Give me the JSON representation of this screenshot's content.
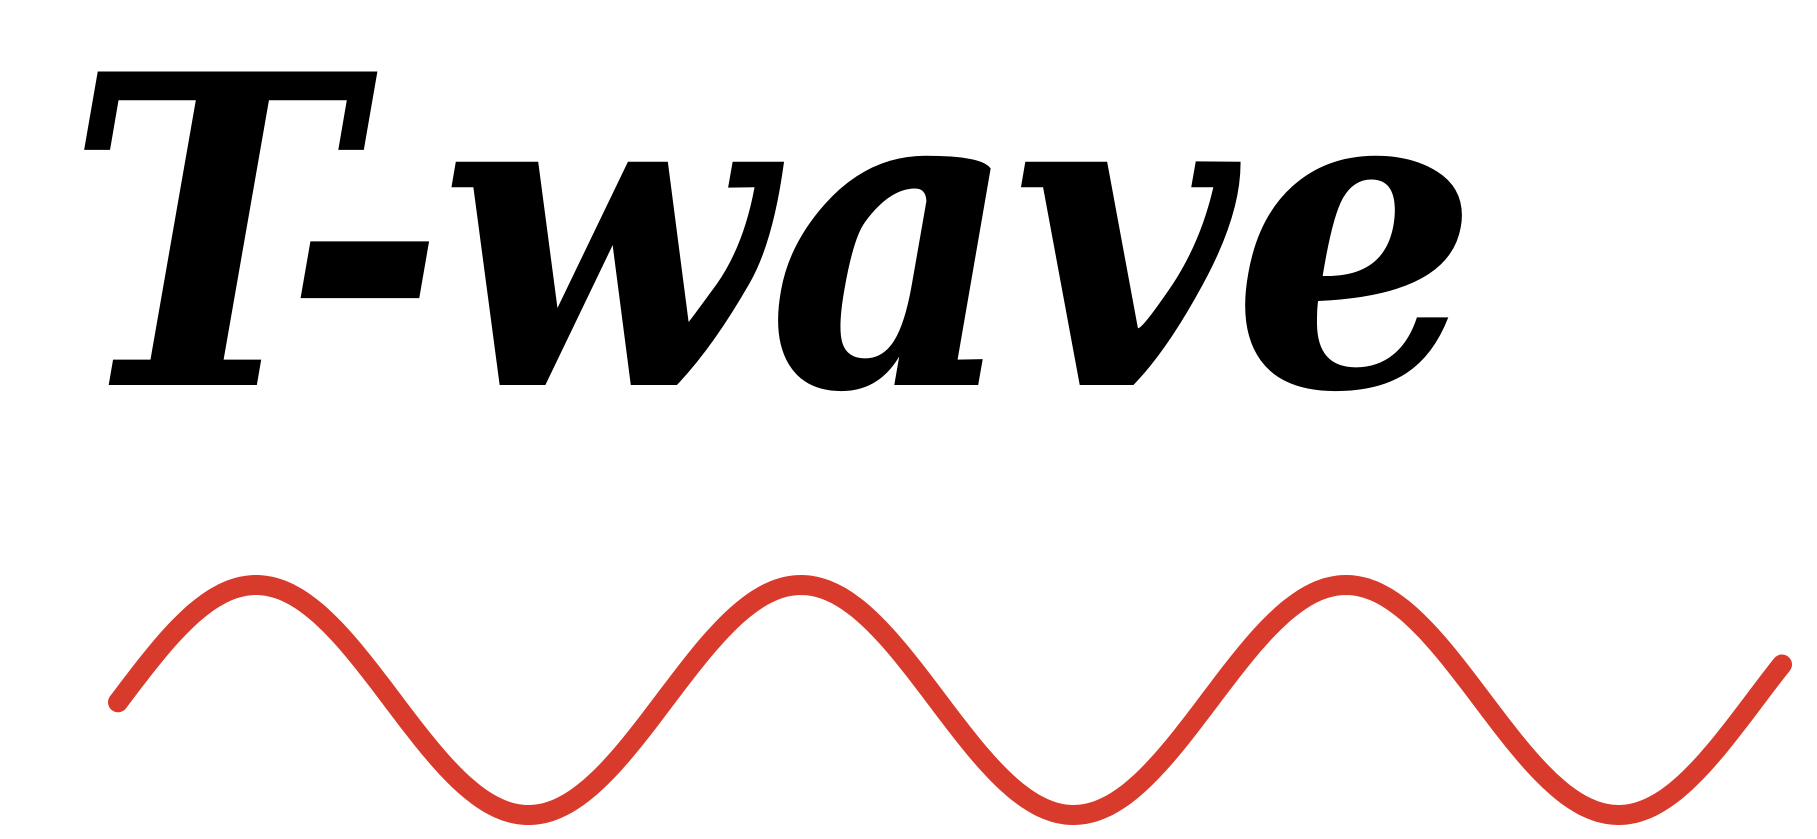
{
  "logo": {
    "wordmark": "T-wave",
    "text_color": "#000000",
    "wave_color": "#d83a2b",
    "background": "#ffffff"
  }
}
